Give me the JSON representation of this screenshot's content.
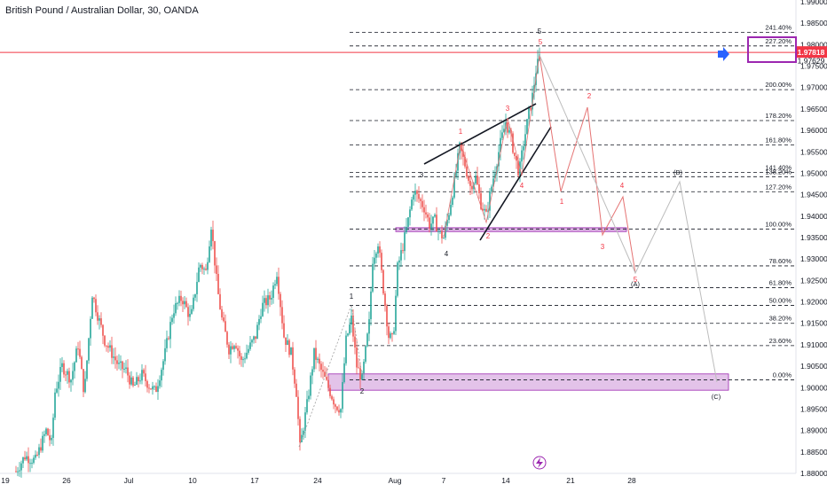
{
  "chart_data": {
    "type": "candlestick",
    "title": "British Pound / Australian Dollar, 30, OANDA",
    "colors": {
      "up": "#26a69a",
      "down": "#ef5350",
      "accent": "#f23645",
      "fib": "#131722",
      "zone": "#9c27b0",
      "arrow": "#2962ff",
      "pink": "#e57373"
    },
    "y_axis": {
      "range": [
        1.88,
        1.99
      ],
      "ticks": [
        "1.99000",
        "1.98500",
        "1.98000",
        "1.97500",
        "1.97000",
        "1.96500",
        "1.96000",
        "1.95500",
        "1.95000",
        "1.94500",
        "1.94000",
        "1.93500",
        "1.93000",
        "1.92500",
        "1.92000",
        "1.91500",
        "1.91000",
        "1.90500",
        "1.90000",
        "1.89500",
        "1.89000",
        "1.88500",
        "1.88000"
      ]
    },
    "x_axis": {
      "ticks": [
        "19",
        "26",
        "Jul",
        "10",
        "17",
        "24",
        "Aug",
        "7",
        "14",
        "21",
        "28"
      ]
    },
    "current_price": {
      "label": "1.97818",
      "value": 1.97818
    },
    "secondary_price": {
      "label": "1.97629",
      "value": 1.97629
    },
    "fib_levels": [
      {
        "label": "241.40%",
        "value": 1.9829
      },
      {
        "label": "227.20%",
        "value": 1.9797
      },
      {
        "label": "200.00%",
        "value": 1.9695
      },
      {
        "label": "178.20%",
        "value": 1.9623
      },
      {
        "label": "161.80%",
        "value": 1.9566
      },
      {
        "label": "141.40%",
        "value": 1.9502
      },
      {
        "label": "138.20%",
        "value": 1.9492
      },
      {
        "label": "127.20%",
        "value": 1.9457
      },
      {
        "label": "100.00%",
        "value": 1.937
      },
      {
        "label": "78.60%",
        "value": 1.9284
      },
      {
        "label": "61.80%",
        "value": 1.9233
      },
      {
        "label": "50.00%",
        "value": 1.9192
      },
      {
        "label": "38.20%",
        "value": 1.915
      },
      {
        "label": "23.60%",
        "value": 1.9098
      },
      {
        "label": "0.00%",
        "value": 1.9018
      }
    ],
    "wave_labels_black": [
      "1",
      "2",
      "3",
      "4",
      "5"
    ],
    "wave_labels_red": [
      "1",
      "2",
      "3",
      "4",
      "5"
    ],
    "projection_labels_red": [
      "1",
      "2",
      "3",
      "4",
      "5"
    ],
    "projection_labels_gray": [
      "(A)",
      "(B)",
      "(C)"
    ],
    "lightning_icon": "lightning-icon"
  }
}
